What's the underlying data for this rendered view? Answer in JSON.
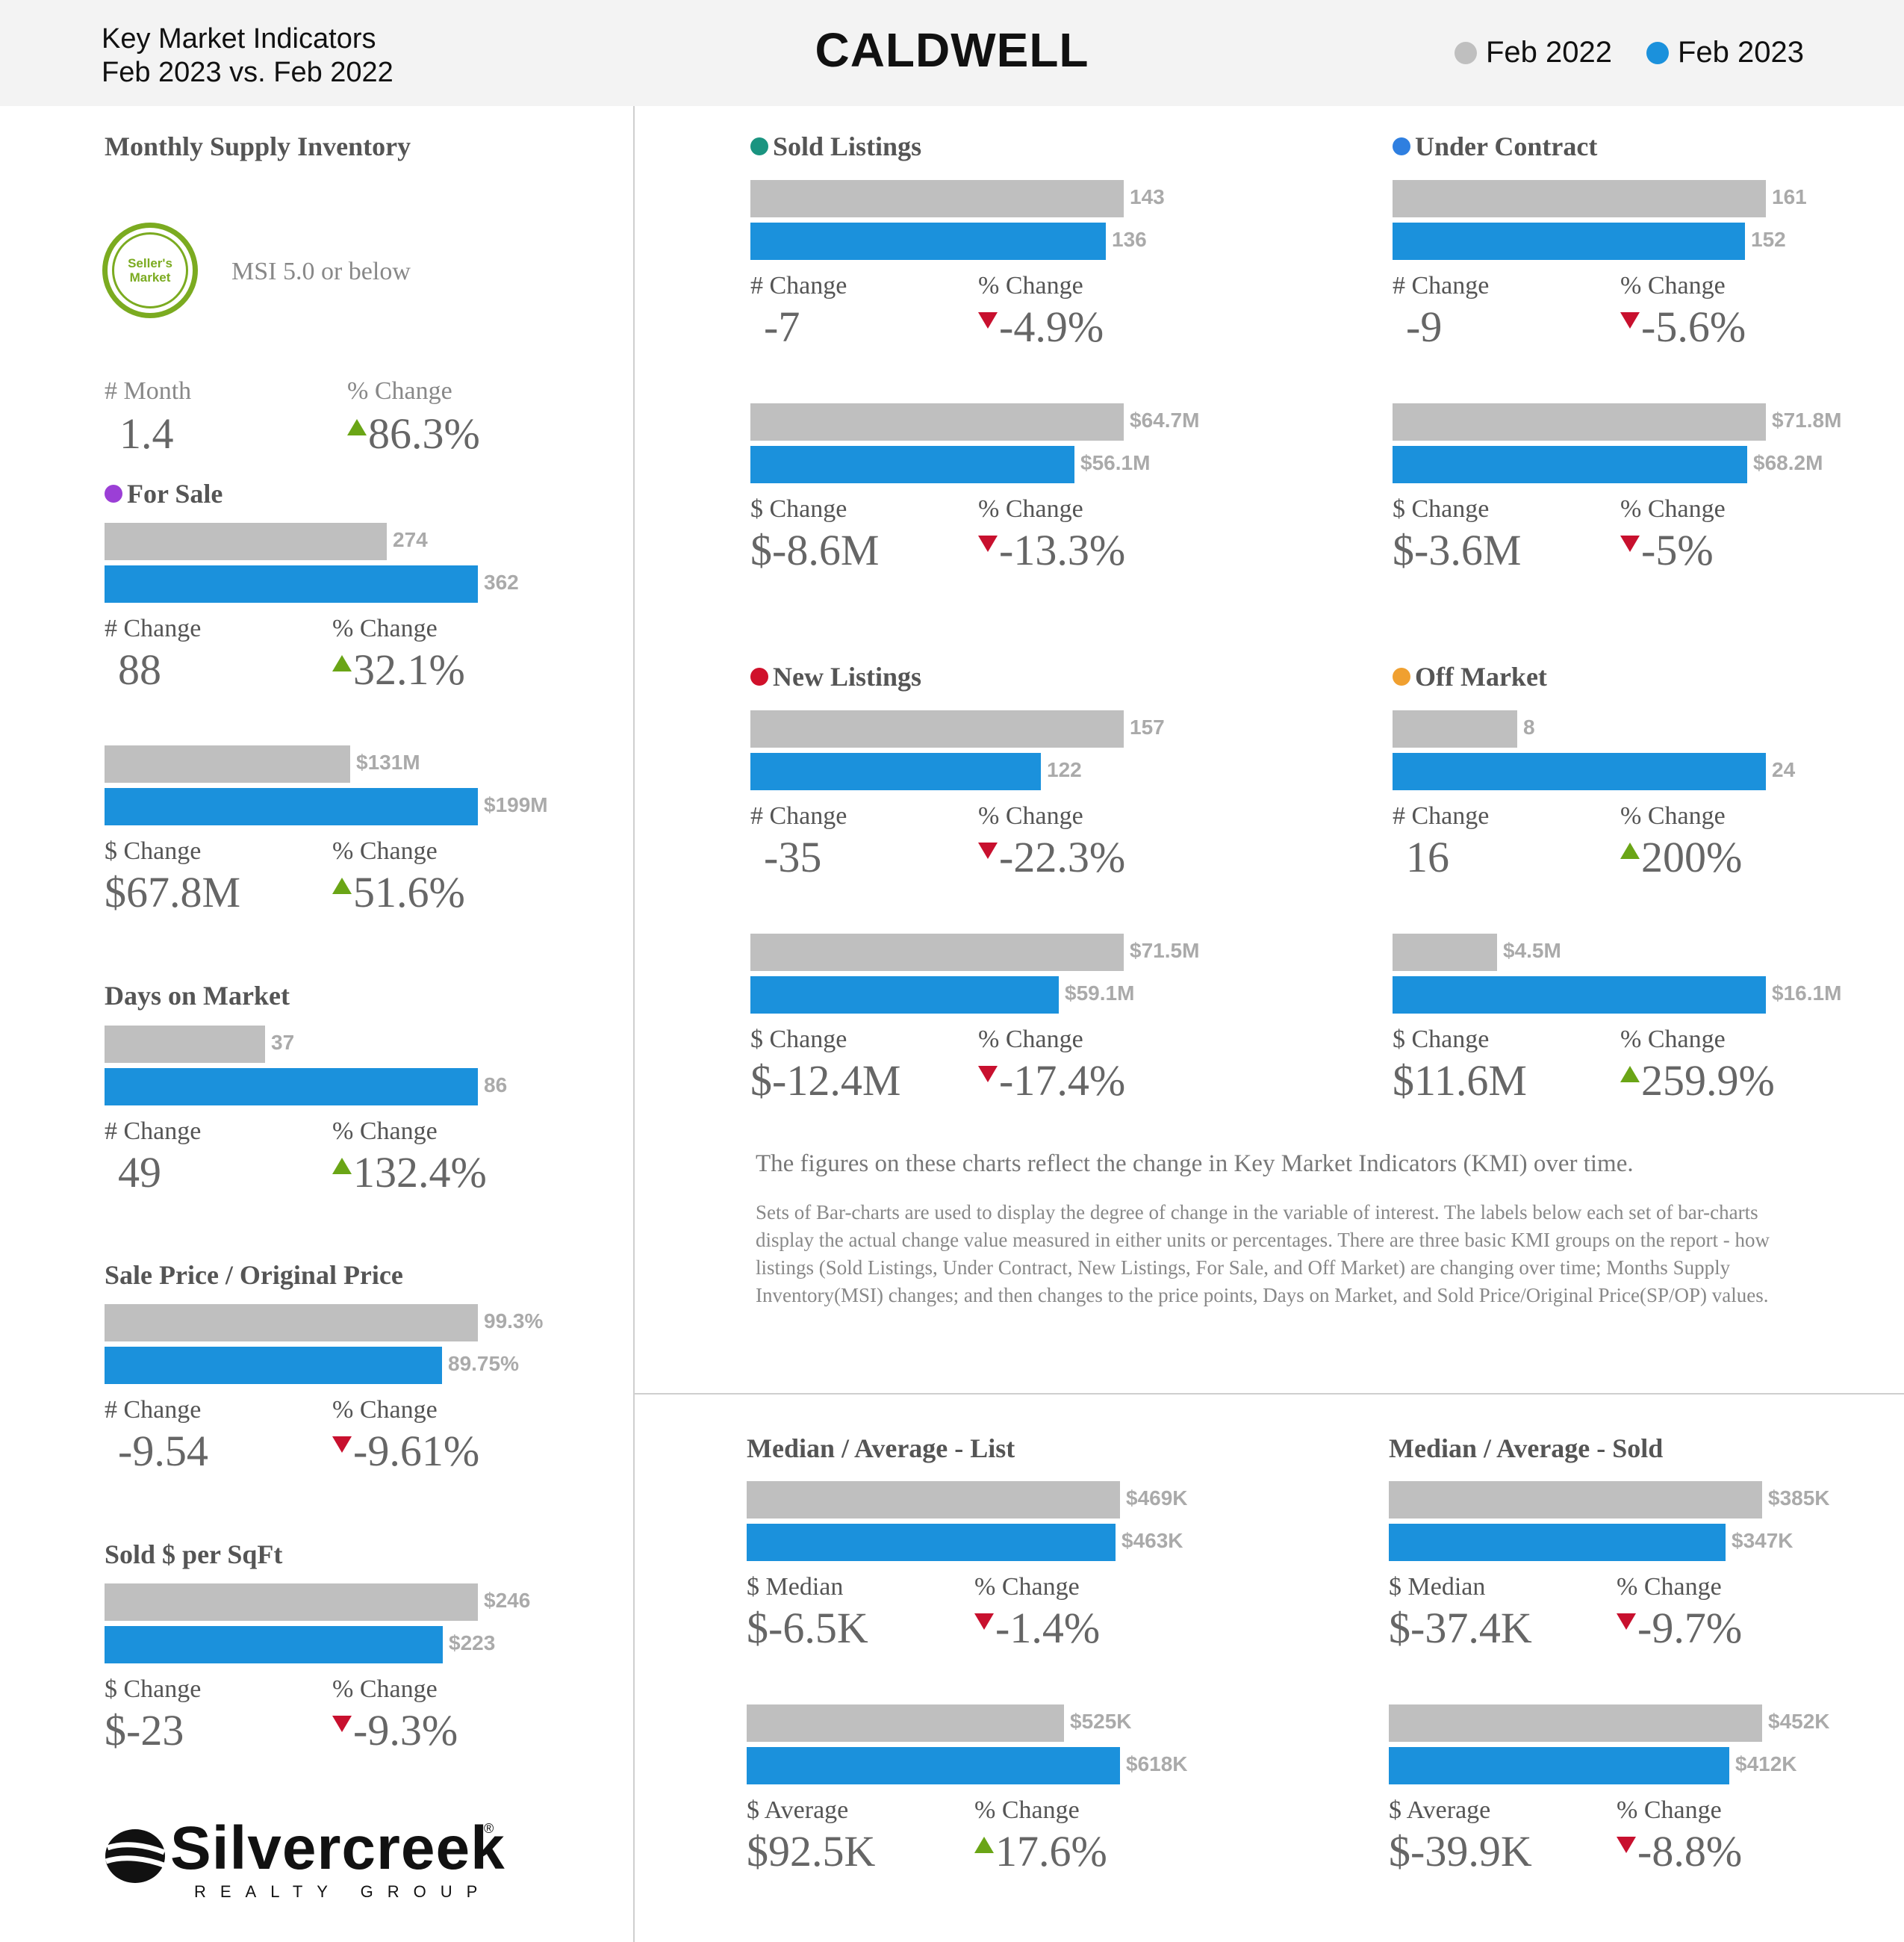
{
  "header": {
    "subtitle_line1": "Key Market Indicators",
    "subtitle_line2": "Feb 2023 vs. Feb 2022",
    "title": "CALDWELL",
    "legend": [
      {
        "label": "Feb 2022",
        "color": "#bfbfbf"
      },
      {
        "label": "Feb 2023",
        "color": "#1b91dc"
      }
    ]
  },
  "colors": {
    "prev": "#bfbfbf",
    "curr": "#1b91dc",
    "up": "#6aa516",
    "down": "#c8102e"
  },
  "msi": {
    "title": "Monthly Supply Inventory",
    "badge_line1": "Seller's",
    "badge_line2": "Market",
    "note": "MSI 5.0 or below",
    "stat1_label": "# Month",
    "stat1_value": "1.4",
    "stat2_label": "% Change",
    "stat2_value": "86.3%",
    "stat2_dir": "up"
  },
  "notes": {
    "main": "The figures on these charts reflect the change in Key Market Indicators (KMI) over time.",
    "body": "Sets of Bar-charts are used to display the degree of change in the variable of interest. The labels below each set of bar-charts display the actual change value measured in either units or percentages. There are three basic KMI groups on the report - how listings (Sold Listings, Under Contract, New Listings, For Sale, and Off Market) are changing over time; Months Supply Inventory(MSI) changes; and then changes to the price points, Days on Market, and Sold Price/Original Price(SP/OP) values."
  },
  "logo": {
    "name": "Silvercreek",
    "reg": "®",
    "tagline": "REALTY GROUP"
  },
  "chart_data": [
    {
      "type": "bar",
      "title": "For Sale",
      "dot_color": "#9b3fd6",
      "series": [
        {
          "name": "Feb 2022",
          "value": 274,
          "label": "274"
        },
        {
          "name": "Feb 2023",
          "value": 362,
          "label": "362"
        }
      ],
      "stat1_label": "# Change",
      "stat1_value": "88",
      "stat2_label": "% Change",
      "stat2_value": "32.1%",
      "stat2_dir": "up"
    },
    {
      "type": "bar",
      "title": "",
      "series": [
        {
          "name": "Feb 2022",
          "value": 131,
          "label": "$131M"
        },
        {
          "name": "Feb 2023",
          "value": 199,
          "label": "$199M"
        }
      ],
      "stat1_label": "$ Change",
      "stat1_value": "$67.8M",
      "stat2_label": "% Change",
      "stat2_value": "51.6%",
      "stat2_dir": "up"
    },
    {
      "type": "bar",
      "title": "Days on Market",
      "series": [
        {
          "name": "Feb 2022",
          "value": 37,
          "label": "37"
        },
        {
          "name": "Feb 2023",
          "value": 86,
          "label": "86"
        }
      ],
      "stat1_label": "# Change",
      "stat1_value": "49",
      "stat2_label": "% Change",
      "stat2_value": "132.4%",
      "stat2_dir": "up"
    },
    {
      "type": "bar",
      "title": "Sale Price / Original Price",
      "series": [
        {
          "name": "Feb 2022",
          "value": 99.3,
          "label": "99.3%"
        },
        {
          "name": "Feb 2023",
          "value": 89.75,
          "label": "89.75%"
        }
      ],
      "stat1_label": "# Change",
      "stat1_value": "-9.54",
      "stat2_label": "% Change",
      "stat2_value": "-9.61%",
      "stat2_dir": "down"
    },
    {
      "type": "bar",
      "title": "Sold $ per SqFt",
      "series": [
        {
          "name": "Feb 2022",
          "value": 246,
          "label": "$246"
        },
        {
          "name": "Feb 2023",
          "value": 223,
          "label": "$223"
        }
      ],
      "stat1_label": "$ Change",
      "stat1_value": "$-23",
      "stat2_label": "% Change",
      "stat2_value": "-9.3%",
      "stat2_dir": "down"
    },
    {
      "type": "bar",
      "title": "Sold Listings",
      "dot_color": "#1a9480",
      "series": [
        {
          "name": "Feb 2022",
          "value": 143,
          "label": "143"
        },
        {
          "name": "Feb 2023",
          "value": 136,
          "label": "136"
        }
      ],
      "stat1_label": "# Change",
      "stat1_value": "-7",
      "stat2_label": "% Change",
      "stat2_value": "-4.9%",
      "stat2_dir": "down"
    },
    {
      "type": "bar",
      "title": "",
      "series": [
        {
          "name": "Feb 2022",
          "value": 64.7,
          "label": "$64.7M"
        },
        {
          "name": "Feb 2023",
          "value": 56.1,
          "label": "$56.1M"
        }
      ],
      "stat1_label": "$ Change",
      "stat1_value": "$-8.6M",
      "stat2_label": "% Change",
      "stat2_value": "-13.3%",
      "stat2_dir": "down"
    },
    {
      "type": "bar",
      "title": "Under Contract",
      "dot_color": "#2f7fe0",
      "series": [
        {
          "name": "Feb 2022",
          "value": 161,
          "label": "161"
        },
        {
          "name": "Feb 2023",
          "value": 152,
          "label": "152"
        }
      ],
      "stat1_label": "# Change",
      "stat1_value": "-9",
      "stat2_label": "% Change",
      "stat2_value": "-5.6%",
      "stat2_dir": "down"
    },
    {
      "type": "bar",
      "title": "",
      "series": [
        {
          "name": "Feb 2022",
          "value": 71.8,
          "label": "$71.8M"
        },
        {
          "name": "Feb 2023",
          "value": 68.2,
          "label": "$68.2M"
        }
      ],
      "stat1_label": "$ Change",
      "stat1_value": "$-3.6M",
      "stat2_label": "% Change",
      "stat2_value": "-5%",
      "stat2_dir": "down"
    },
    {
      "type": "bar",
      "title": "New Listings",
      "dot_color": "#d0112b",
      "series": [
        {
          "name": "Feb 2022",
          "value": 157,
          "label": "157"
        },
        {
          "name": "Feb 2023",
          "value": 122,
          "label": "122"
        }
      ],
      "stat1_label": "# Change",
      "stat1_value": "-35",
      "stat2_label": "% Change",
      "stat2_value": "-22.3%",
      "stat2_dir": "down"
    },
    {
      "type": "bar",
      "title": "",
      "series": [
        {
          "name": "Feb 2022",
          "value": 71.5,
          "label": "$71.5M"
        },
        {
          "name": "Feb 2023",
          "value": 59.1,
          "label": "$59.1M"
        }
      ],
      "stat1_label": "$ Change",
      "stat1_value": "$-12.4M",
      "stat2_label": "% Change",
      "stat2_value": "-17.4%",
      "stat2_dir": "down"
    },
    {
      "type": "bar",
      "title": "Off Market",
      "dot_color": "#f0a030",
      "series": [
        {
          "name": "Feb 2022",
          "value": 8,
          "label": "8"
        },
        {
          "name": "Feb 2023",
          "value": 24,
          "label": "24"
        }
      ],
      "stat1_label": "# Change",
      "stat1_value": "16",
      "stat2_label": "% Change",
      "stat2_value": "200%",
      "stat2_dir": "up"
    },
    {
      "type": "bar",
      "title": "",
      "series": [
        {
          "name": "Feb 2022",
          "value": 4.5,
          "label": "$4.5M"
        },
        {
          "name": "Feb 2023",
          "value": 16.1,
          "label": "$16.1M"
        }
      ],
      "stat1_label": "$ Change",
      "stat1_value": "$11.6M",
      "stat2_label": "% Change",
      "stat2_value": "259.9%",
      "stat2_dir": "up"
    },
    {
      "type": "bar",
      "title": "Median / Average - List",
      "series": [
        {
          "name": "Feb 2022",
          "value": 469,
          "label": "$469K"
        },
        {
          "name": "Feb 2023",
          "value": 463,
          "label": "$463K"
        }
      ],
      "stat1_label": "$ Median",
      "stat1_value": "$-6.5K",
      "stat2_label": "% Change",
      "stat2_value": "-1.4%",
      "stat2_dir": "down"
    },
    {
      "type": "bar",
      "title": "",
      "series": [
        {
          "name": "Feb 2022",
          "value": 525,
          "label": "$525K"
        },
        {
          "name": "Feb 2023",
          "value": 618,
          "label": "$618K"
        }
      ],
      "stat1_label": "$ Average",
      "stat1_value": "$92.5K",
      "stat2_label": "% Change",
      "stat2_value": "17.6%",
      "stat2_dir": "up"
    },
    {
      "type": "bar",
      "title": "Median / Average - Sold",
      "series": [
        {
          "name": "Feb 2022",
          "value": 385,
          "label": "$385K"
        },
        {
          "name": "Feb 2023",
          "value": 347,
          "label": "$347K"
        }
      ],
      "stat1_label": "$ Median",
      "stat1_value": "$-37.4K",
      "stat2_label": "% Change",
      "stat2_value": "-9.7%",
      "stat2_dir": "down"
    },
    {
      "type": "bar",
      "title": "",
      "series": [
        {
          "name": "Feb 2022",
          "value": 452,
          "label": "$452K"
        },
        {
          "name": "Feb 2023",
          "value": 412,
          "label": "$412K"
        }
      ],
      "stat1_label": "$ Average",
      "stat1_value": "$-39.9K",
      "stat2_label": "% Change",
      "stat2_value": "-8.8%",
      "stat2_dir": "down"
    }
  ]
}
